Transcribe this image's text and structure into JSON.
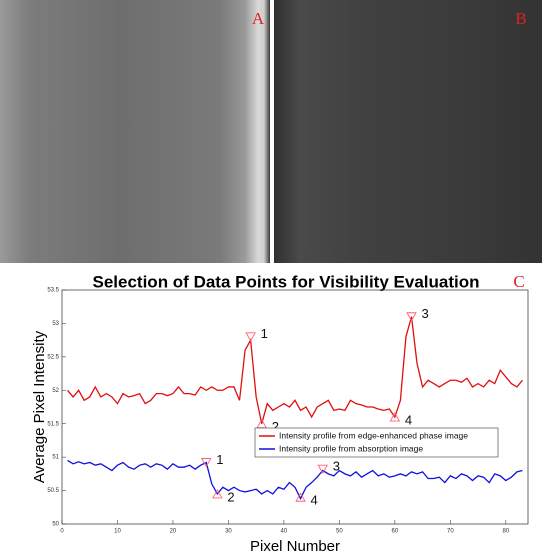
{
  "panels": [
    "A",
    "B",
    "C"
  ],
  "chart_data": {
    "type": "line",
    "title": "Selection of Data Points for Visibility Evaluation",
    "xlabel": "Pixel Number",
    "ylabel": "Average Pixel Intensity",
    "xlim": [
      0,
      84
    ],
    "ylim": [
      50,
      53.5
    ],
    "xticks": [
      0,
      10,
      20,
      30,
      40,
      50,
      60,
      70,
      80
    ],
    "yticks": [
      50,
      50.5,
      51,
      51.5,
      52,
      52.5,
      53,
      53.5
    ],
    "legend": "right",
    "x": [
      1,
      2,
      3,
      4,
      5,
      6,
      7,
      8,
      9,
      10,
      11,
      12,
      13,
      14,
      15,
      16,
      17,
      18,
      19,
      20,
      21,
      22,
      23,
      24,
      25,
      26,
      27,
      28,
      29,
      30,
      31,
      32,
      33,
      34,
      35,
      36,
      37,
      38,
      39,
      40,
      41,
      42,
      43,
      44,
      45,
      46,
      47,
      48,
      49,
      50,
      51,
      52,
      53,
      54,
      55,
      56,
      57,
      58,
      59,
      60,
      61,
      62,
      63,
      64,
      65,
      66,
      67,
      68,
      69,
      70,
      71,
      72,
      73,
      74,
      75,
      76,
      77,
      78,
      79,
      80,
      81,
      82,
      83
    ],
    "series": [
      {
        "name": "Intensity profile from edge-enhanced phase image",
        "color": "#e01010",
        "values": [
          52.0,
          51.9,
          52.0,
          51.85,
          51.9,
          52.05,
          51.9,
          51.95,
          51.9,
          51.8,
          51.95,
          51.9,
          51.92,
          51.95,
          51.8,
          51.85,
          51.95,
          51.95,
          51.92,
          51.95,
          52.05,
          51.95,
          51.95,
          51.93,
          52.05,
          52.0,
          52.05,
          52.0,
          52.0,
          52.05,
          52.05,
          51.85,
          52.6,
          52.75,
          51.9,
          51.5,
          51.8,
          51.7,
          51.75,
          51.8,
          51.75,
          51.85,
          51.7,
          51.75,
          51.6,
          51.75,
          51.8,
          51.85,
          51.7,
          51.72,
          51.7,
          51.85,
          51.8,
          51.78,
          51.75,
          51.75,
          51.72,
          51.7,
          51.72,
          51.6,
          51.85,
          52.8,
          53.1,
          52.4,
          52.05,
          52.15,
          52.1,
          52.05,
          52.1,
          52.15,
          52.15,
          52.12,
          52.18,
          52.05,
          52.1,
          52.05,
          52.15,
          52.1,
          52.3,
          52.2,
          52.1,
          52.05,
          52.15
        ]
      },
      {
        "name": "Intensity profile from absorption image",
        "color": "#1010e0",
        "values": [
          50.95,
          50.9,
          50.93,
          50.9,
          50.92,
          50.88,
          50.9,
          50.85,
          50.8,
          50.88,
          50.92,
          50.85,
          50.82,
          50.88,
          50.9,
          50.85,
          50.9,
          50.88,
          50.82,
          50.9,
          50.85,
          50.85,
          50.88,
          50.82,
          50.88,
          50.92,
          50.6,
          50.45,
          50.55,
          50.5,
          50.55,
          50.5,
          50.48,
          50.5,
          50.52,
          50.45,
          50.5,
          50.45,
          50.55,
          50.52,
          50.62,
          50.55,
          50.38,
          50.55,
          50.62,
          50.7,
          50.8,
          50.75,
          50.72,
          50.8,
          50.75,
          50.72,
          50.78,
          50.7,
          50.75,
          50.8,
          50.72,
          50.75,
          50.7,
          50.72,
          50.75,
          50.72,
          50.78,
          50.75,
          50.78,
          50.68,
          50.68,
          50.7,
          50.62,
          50.72,
          50.68,
          50.75,
          50.72,
          50.65,
          50.72,
          50.7,
          50.62,
          50.75,
          50.72,
          50.65,
          50.7,
          50.78,
          50.8
        ]
      }
    ],
    "annotations": [
      {
        "label": "1",
        "x": 34,
        "y": 52.8,
        "marker": "down",
        "series": 0
      },
      {
        "label": "2",
        "x": 36,
        "y": 51.5,
        "marker": "up",
        "series": 0
      },
      {
        "label": "3",
        "x": 63,
        "y": 53.1,
        "marker": "down",
        "series": 0
      },
      {
        "label": "4",
        "x": 60,
        "y": 51.6,
        "marker": "up",
        "series": 0
      },
      {
        "label": "1",
        "x": 26,
        "y": 50.92,
        "marker": "down",
        "series": 1
      },
      {
        "label": "2",
        "x": 28,
        "y": 50.45,
        "marker": "up",
        "series": 1
      },
      {
        "label": "3",
        "x": 47,
        "y": 50.82,
        "marker": "down",
        "series": 1
      },
      {
        "label": "4",
        "x": 43,
        "y": 50.4,
        "marker": "up",
        "series": 1
      }
    ]
  }
}
